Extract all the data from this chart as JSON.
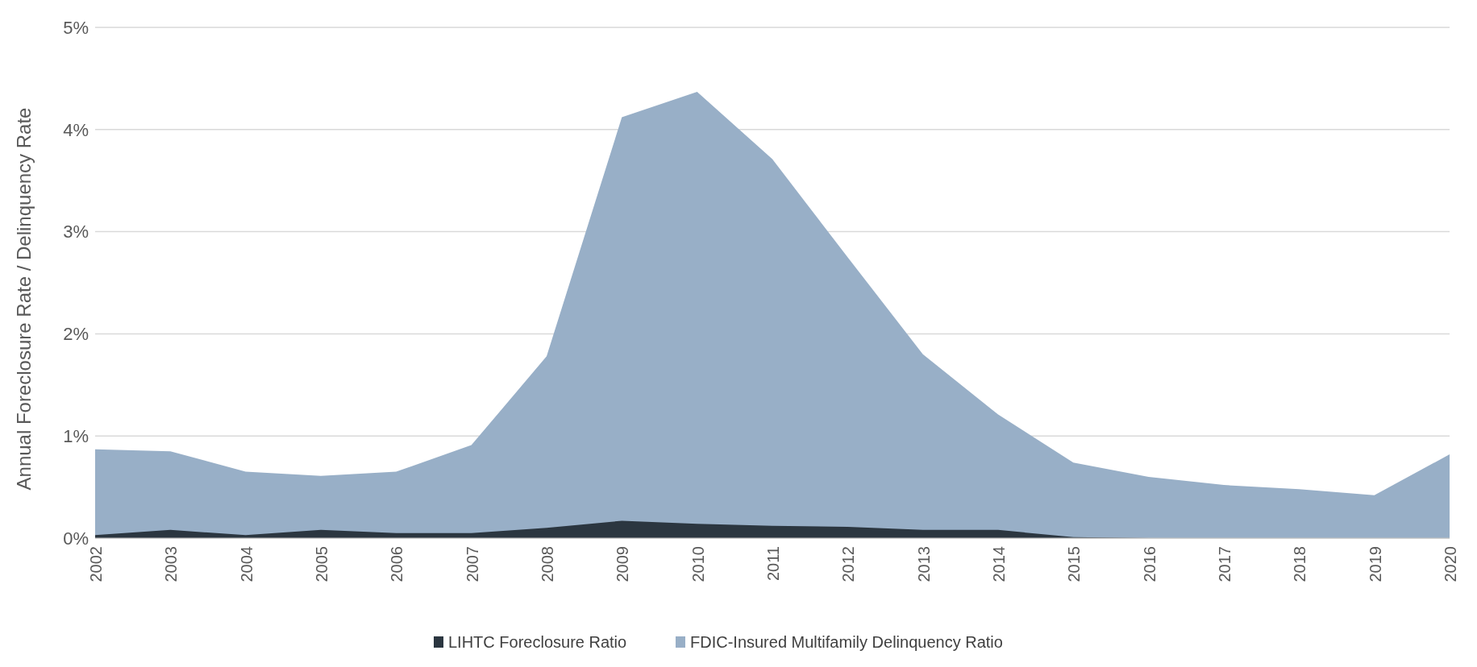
{
  "chart_data": {
    "type": "area",
    "ylabel": "Annual Foreclosure Rate / Delinquency Rate",
    "categories": [
      "2002",
      "2003",
      "2004",
      "2005",
      "2006",
      "2007",
      "2008",
      "2009",
      "2010",
      "2011",
      "2012",
      "2013",
      "2014",
      "2015",
      "2016",
      "2017",
      "2018",
      "2019",
      "2020"
    ],
    "series": [
      {
        "name": "LIHTC Foreclosure Ratio",
        "color": "#2b3640",
        "values": [
          0.03,
          0.08,
          0.03,
          0.08,
          0.05,
          0.05,
          0.1,
          0.17,
          0.14,
          0.12,
          0.11,
          0.08,
          0.08,
          0.01,
          0,
          0,
          0,
          0,
          0
        ]
      },
      {
        "name": "FDIC-Insured Multifamily Delinquency Ratio",
        "color": "#98afc7",
        "values": [
          0.87,
          0.85,
          0.65,
          0.61,
          0.65,
          0.91,
          1.78,
          4.12,
          4.37,
          3.71,
          2.75,
          1.8,
          1.21,
          0.74,
          0.6,
          0.52,
          0.48,
          0.42,
          0.82
        ]
      }
    ],
    "ylim": [
      0,
      5
    ],
    "yticks": [
      {
        "value": 0,
        "label": "0%"
      },
      {
        "value": 1,
        "label": "1%"
      },
      {
        "value": 2,
        "label": "2%"
      },
      {
        "value": 3,
        "label": "3%"
      },
      {
        "value": 4,
        "label": "4%"
      },
      {
        "value": 5,
        "label": "5%"
      }
    ],
    "grid": "y",
    "legend": "bottom"
  }
}
